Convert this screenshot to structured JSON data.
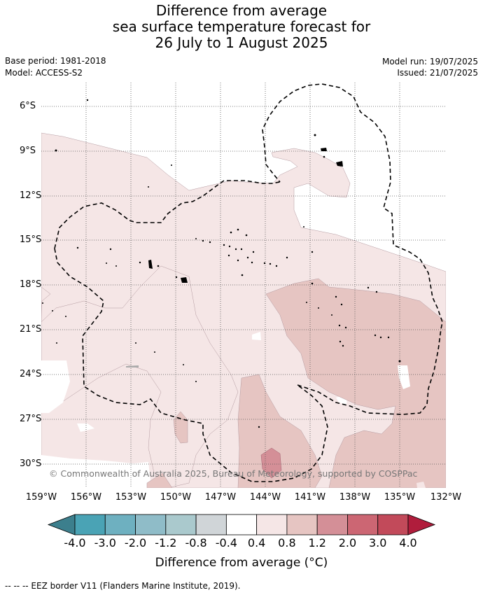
{
  "title": {
    "line1": "Difference from average",
    "line2": "sea surface temperature forecast for",
    "line3": "26 July to 1 August 2025"
  },
  "meta": {
    "base_period": "Base period: 1981-2018",
    "model": "Model: ACCESS-S2",
    "model_run": "Model run: 19/07/2025",
    "issued": "Issued: 21/07/2025"
  },
  "axes": {
    "lat_labels": [
      "6°S",
      "9°S",
      "12°S",
      "15°S",
      "18°S",
      "21°S",
      "24°S",
      "27°S",
      "30°S"
    ],
    "lon_labels": [
      "159°W",
      "156°W",
      "153°W",
      "150°W",
      "147°W",
      "144°W",
      "141°W",
      "138°W",
      "135°W",
      "132°W"
    ]
  },
  "copyright": "© Commonwealth of Australia 2025, Bureau of Meteorology, supported by COSPPac",
  "colorbar": {
    "labels": [
      "-4.0",
      "-3.0",
      "-2.0",
      "-1.2",
      "-0.8",
      "-0.4",
      "0.4",
      "0.8",
      "1.2",
      "2.0",
      "3.0",
      "4.0"
    ],
    "colors": [
      "#3c7f8d",
      "#4aa3b5",
      "#6eb0c0",
      "#8fbcc8",
      "#aac9cd",
      "#d0d5d8",
      "#ffffff",
      "#f5e6e6",
      "#e6c5c2",
      "#d48f97",
      "#cc6673",
      "#c24a5a",
      "#b01d3c"
    ],
    "title": "Difference from average (°C)"
  },
  "footer": "--  --  -- EEZ border V11 (Flanders Marine Institute, 2019).",
  "map_colors": {
    "land": "#000000",
    "cat_04_08": "#f5e6e6",
    "cat_08_12": "#e6c5c2",
    "cat_12_20": "#d48f97",
    "grid": "#555555"
  }
}
